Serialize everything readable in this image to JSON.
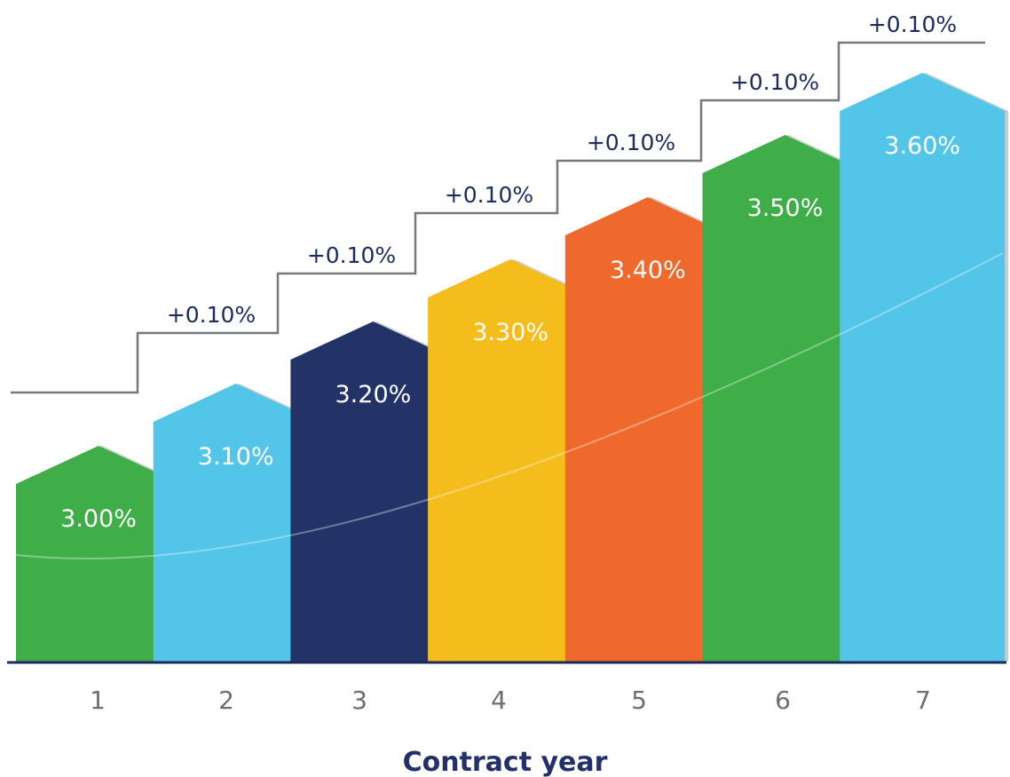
{
  "chart_data": {
    "type": "bar",
    "title": "",
    "xlabel": "Contract year",
    "ylabel": "",
    "categories": [
      "1",
      "2",
      "3",
      "4",
      "5",
      "6",
      "7"
    ],
    "values": [
      3.0,
      3.1,
      3.2,
      3.3,
      3.4,
      3.5,
      3.6
    ],
    "value_labels": [
      "3.00%",
      "3.10%",
      "3.20%",
      "3.30%",
      "3.40%",
      "3.50%",
      "3.60%"
    ],
    "increment_labels": [
      "+0.10%",
      "+0.10%",
      "+0.10%",
      "+0.10%",
      "+0.10%",
      "+0.10%"
    ],
    "colors": [
      "#3fae49",
      "#52c5e8",
      "#233368",
      "#f4bd1b",
      "#f0692c",
      "#3fae49",
      "#52c5e8"
    ],
    "grid": false,
    "legend": "none"
  }
}
